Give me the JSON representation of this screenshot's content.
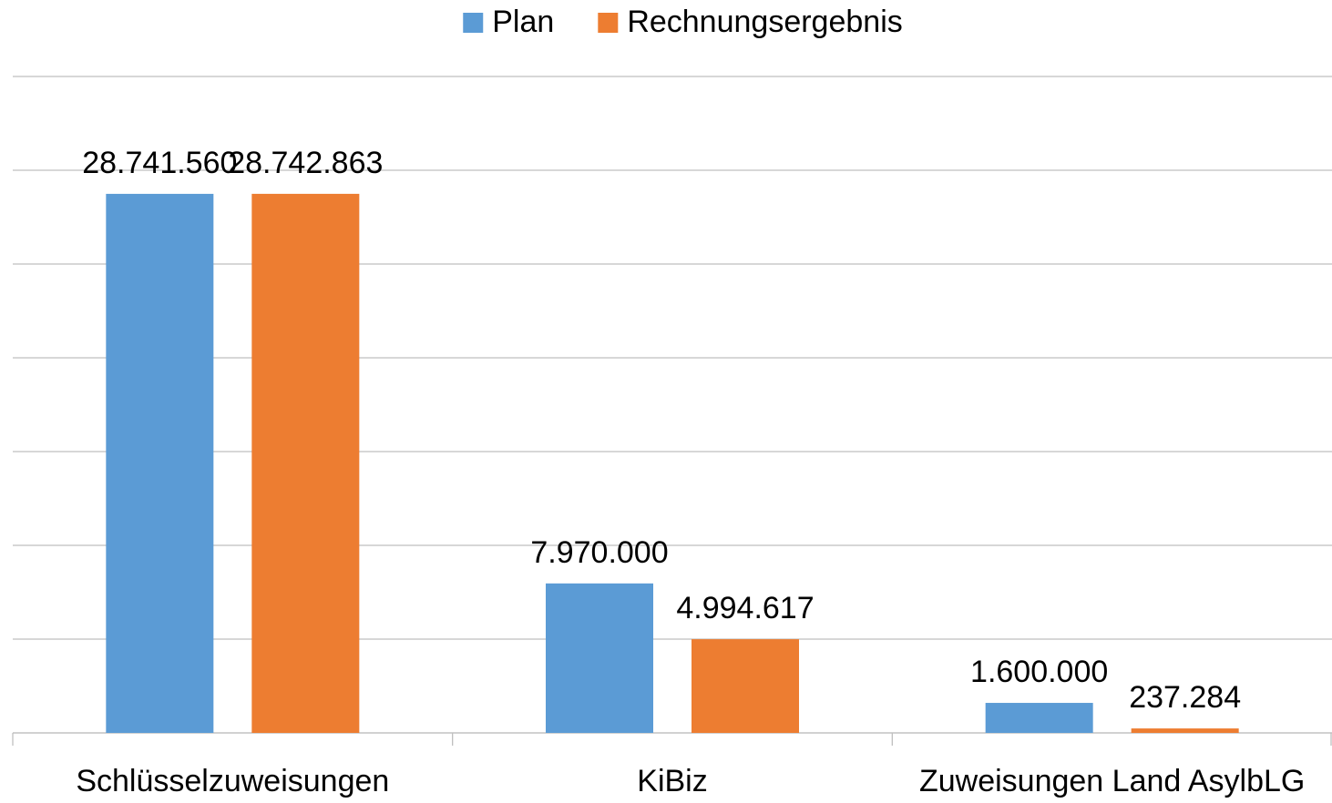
{
  "chart_data": {
    "type": "bar",
    "categories": [
      "Schlüsselzuweisungen",
      "KiBiz",
      "Zuweisungen Land AsylbLG"
    ],
    "series": [
      {
        "name": "Plan",
        "color": "#5b9bd5",
        "values": [
          28741560,
          7970000,
          1600000
        ],
        "value_labels": [
          "28.741.560",
          "7.970.000",
          "1.600.000"
        ]
      },
      {
        "name": "Rechnungsergebnis",
        "color": "#ed7d31",
        "values": [
          28742863,
          4994617,
          237284
        ],
        "value_labels": [
          "28.742.863",
          "4.994.617",
          "237.284"
        ]
      }
    ],
    "ylim": [
      0,
      35000000
    ],
    "yticks": [
      0,
      5000000,
      10000000,
      15000000,
      20000000,
      25000000,
      30000000,
      35000000
    ],
    "grid": true,
    "legend": "top"
  }
}
